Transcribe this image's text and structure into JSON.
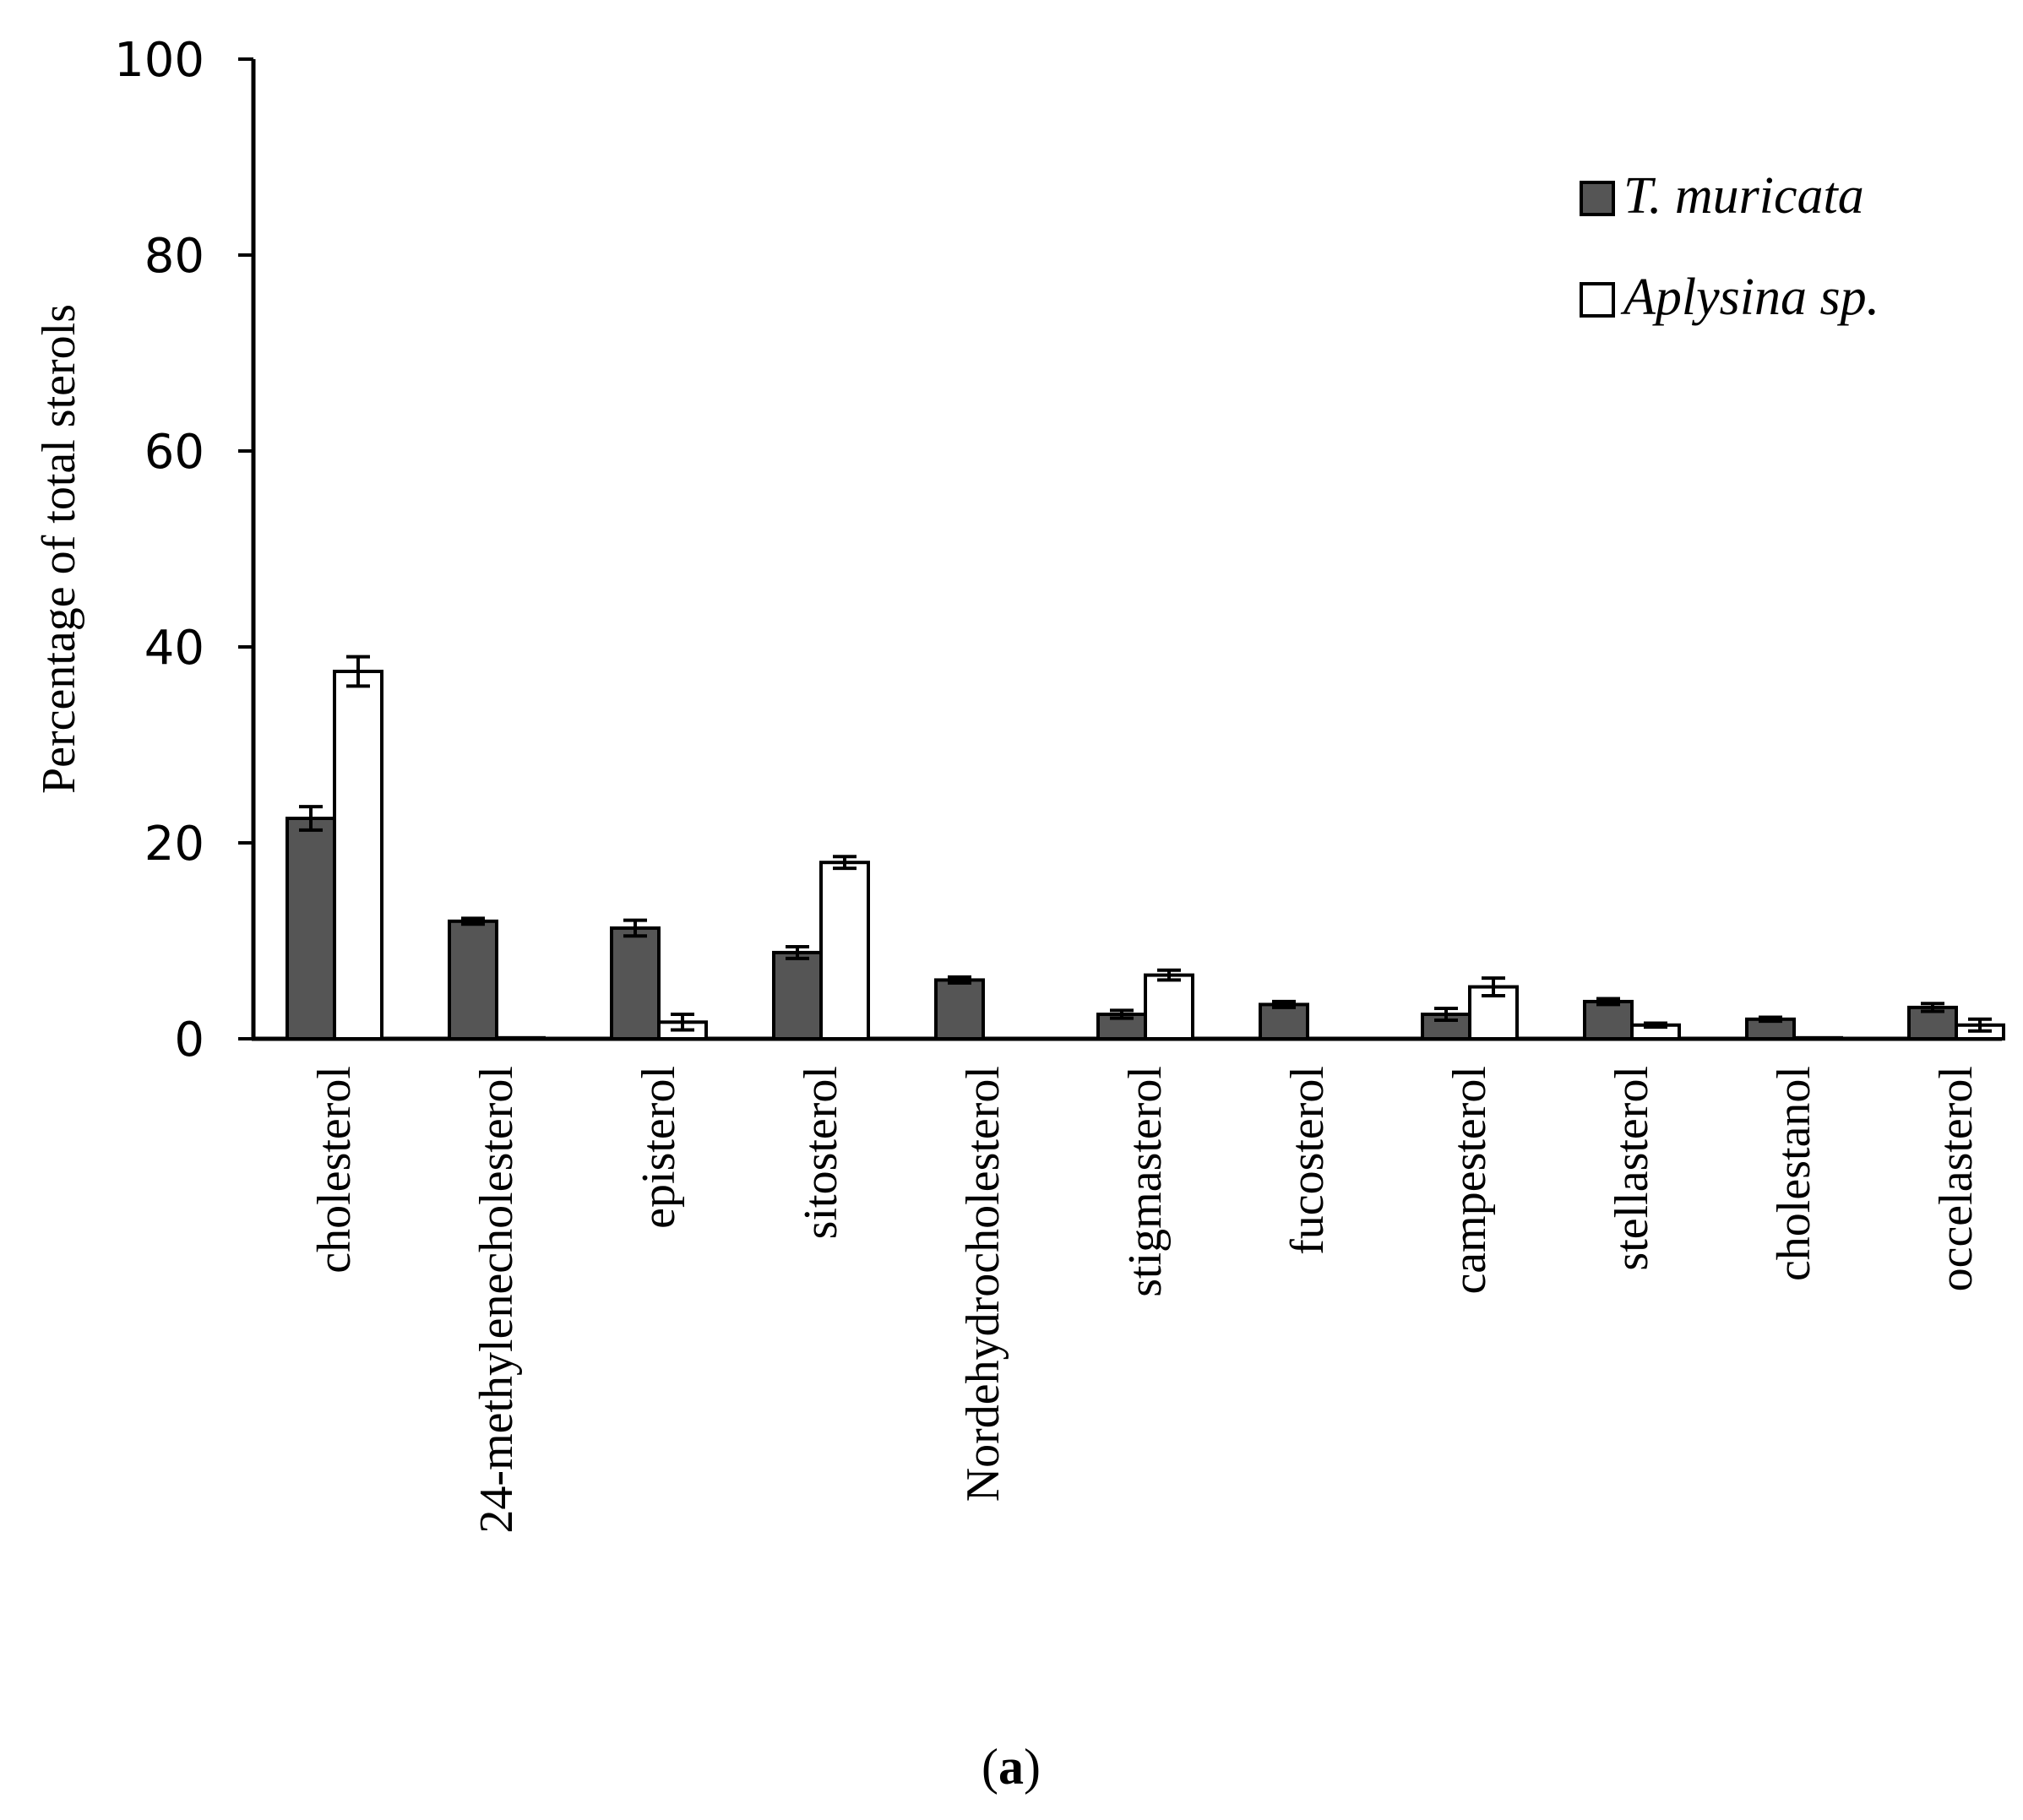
{
  "chart_data": {
    "type": "bar",
    "title": "",
    "xlabel": "",
    "ylabel": "Percentage of total sterols",
    "ylim": [
      0,
      100
    ],
    "yticks": [
      0,
      20,
      40,
      60,
      80,
      100
    ],
    "grid": false,
    "legend_position": "top-right",
    "categories": [
      "cholesterol",
      "24-methylenecholesterol",
      "episterol",
      "sitosterol",
      "Nordehydrocholesterol",
      "stigmasterol",
      "fucosterol",
      "campesterol",
      "stellasterol",
      "cholestanol",
      "occelasterol"
    ],
    "series": [
      {
        "name": "T. muricata",
        "color": "#555555",
        "values": [
          22.5,
          12,
          11.3,
          8.8,
          6,
          2.5,
          3.5,
          2.5,
          3.8,
          2,
          3.2
        ],
        "errors": [
          1.2,
          0.3,
          0.8,
          0.6,
          0.3,
          0.4,
          0.3,
          0.6,
          0.3,
          0.2,
          0.4
        ]
      },
      {
        "name": "Aplysina sp.",
        "color": "#ffffff",
        "values": [
          37.5,
          0.1,
          1.7,
          18,
          0,
          6.5,
          0,
          5.3,
          1.4,
          0.1,
          1.4
        ],
        "errors": [
          1.5,
          0,
          0.8,
          0.6,
          0,
          0.5,
          0,
          0.9,
          0.2,
          0,
          0.6
        ]
      }
    ]
  },
  "caption": {
    "open": "(",
    "letter": "a",
    "close": ")"
  }
}
